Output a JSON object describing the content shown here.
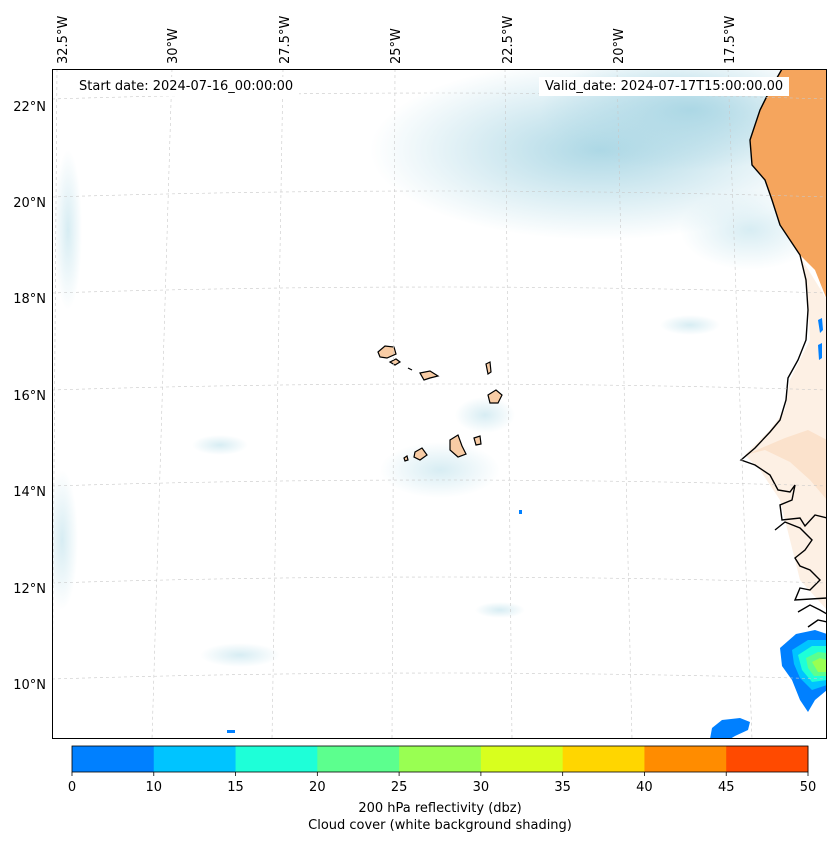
{
  "header": {
    "start_date": "Start date: 2024-07-16_00:00:00",
    "valid_date": "Valid_date: 2024-07-17T15:00:00.00"
  },
  "axes": {
    "lon_labels": [
      "32.5°W",
      "30°W",
      "27.5°W",
      "25°W",
      "22.5°W",
      "20°W",
      "17.5°W"
    ],
    "lat_labels": [
      "22°N",
      "20°N",
      "18°N",
      "16°N",
      "14°N",
      "12°N",
      "10°N"
    ]
  },
  "colorbar": {
    "ticks": [
      "0",
      "10",
      "15",
      "20",
      "25",
      "30",
      "35",
      "40",
      "45",
      "50"
    ],
    "colors": [
      "#0080ff",
      "#00c4ff",
      "#1effd8",
      "#5cff8e",
      "#99ff52",
      "#d8ff1e",
      "#ffd600",
      "#ff8c00",
      "#ff4a00"
    ],
    "label": "200 hPa reflectivity (dbz)",
    "sublabel": "Cloud cover (white background shading)"
  },
  "colors": {
    "land": "#f5a55d",
    "land_light": "#fbe2cc",
    "cloud": "#add8e6",
    "coast": "#000000",
    "grid": "#c8c8c8"
  }
}
